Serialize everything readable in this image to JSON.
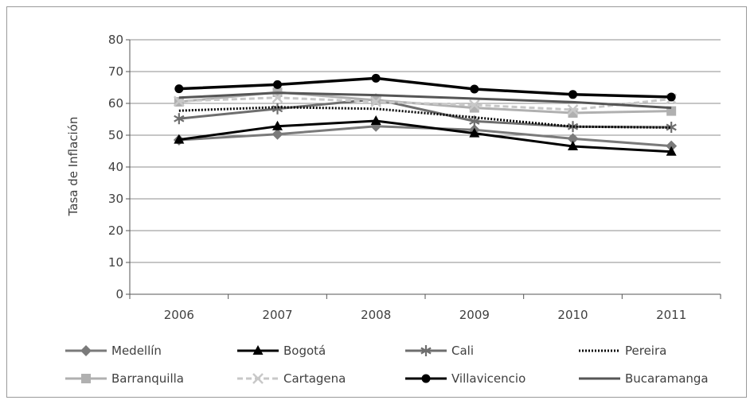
{
  "chart_data": {
    "type": "line",
    "title": "",
    "xlabel": "",
    "ylabel": "Tasa de Inflación",
    "ylim": [
      0,
      80
    ],
    "yticks": [
      0,
      10,
      20,
      30,
      40,
      50,
      60,
      70,
      80
    ],
    "grid": true,
    "legend_position": "bottom",
    "categories": [
      "2006",
      "2007",
      "2008",
      "2009",
      "2010",
      "2011"
    ],
    "series": [
      {
        "name": "Medellín",
        "color": "#7a7a7a",
        "marker": "diamond",
        "dash": "solid",
        "values": [
          48.5,
          50.3,
          52.8,
          51.7,
          48.9,
          46.6
        ]
      },
      {
        "name": "Bogotá",
        "color": "#000000",
        "marker": "triangle",
        "dash": "solid",
        "values": [
          48.6,
          52.8,
          54.5,
          50.6,
          46.5,
          44.8
        ]
      },
      {
        "name": "Cali",
        "color": "#6e6e6e",
        "marker": "asterisk",
        "dash": "solid",
        "values": [
          55.2,
          58.3,
          61.3,
          54.4,
          52.7,
          52.5
        ]
      },
      {
        "name": "Pereira",
        "color": "#000000",
        "marker": "none",
        "dash": "dotted",
        "values": [
          57.7,
          58.8,
          58.3,
          55.6,
          52.7,
          52.4
        ]
      },
      {
        "name": "Barranquilla",
        "color": "#b0b0b0",
        "marker": "square",
        "dash": "solid",
        "values": [
          60.5,
          63.5,
          61.0,
          58.6,
          57.0,
          57.6
        ]
      },
      {
        "name": "Cartagena",
        "color": "#c8c8c8",
        "marker": "cross",
        "dash": "dashed",
        "values": [
          60.7,
          61.8,
          60.5,
          59.5,
          58.0,
          61.4
        ]
      },
      {
        "name": "Villavicencio",
        "color": "#000000",
        "marker": "circle",
        "dash": "solid",
        "values": [
          64.6,
          65.9,
          67.9,
          64.5,
          62.8,
          62.0
        ]
      },
      {
        "name": "Bucaramanga",
        "color": "#555555",
        "marker": "none",
        "dash": "solid",
        "values": [
          61.8,
          63.3,
          62.6,
          61.5,
          60.4,
          58.6
        ]
      }
    ]
  }
}
